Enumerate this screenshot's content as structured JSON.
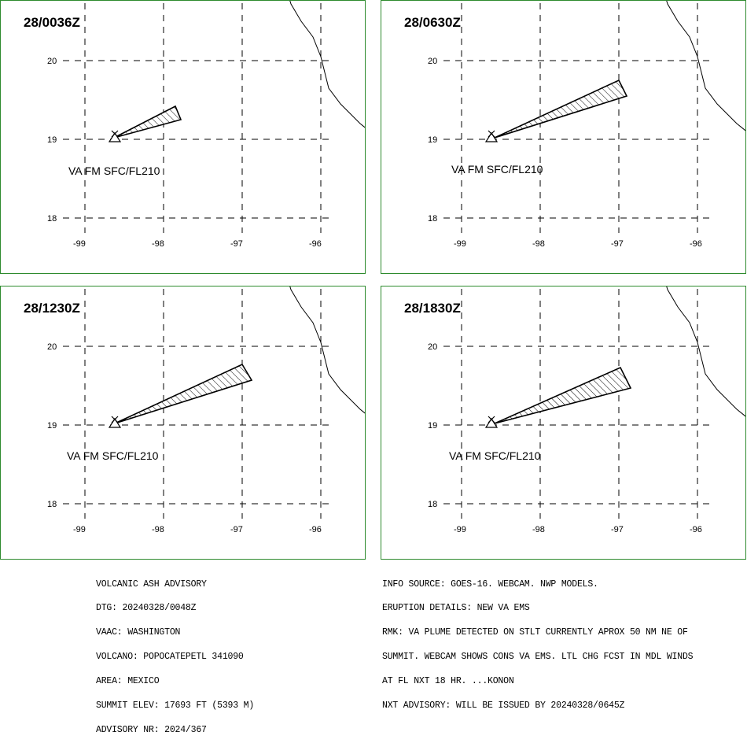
{
  "panels": [
    {
      "time": "28/0036Z",
      "va_label": "VA FM SFC/FL210",
      "plume": [
        [
          -98.63,
          19.02
        ],
        [
          -97.85,
          19.42
        ],
        [
          -97.78,
          19.25
        ]
      ]
    },
    {
      "time": "28/0630Z",
      "va_label": "VA FM SFC/FL210",
      "plume": [
        [
          -98.58,
          19.02
        ],
        [
          -97.0,
          19.75
        ],
        [
          -96.9,
          19.55
        ]
      ]
    },
    {
      "time": "28/1230Z",
      "va_label": "VA FM SFC/FL210",
      "plume": [
        [
          -98.62,
          19.02
        ],
        [
          -97.0,
          19.77
        ],
        [
          -96.88,
          19.57
        ]
      ]
    },
    {
      "time": "28/1830Z",
      "va_label": "VA FM SFC/FL210",
      "plume": [
        [
          -98.58,
          19.02
        ],
        [
          -96.98,
          19.73
        ],
        [
          -96.85,
          19.47
        ]
      ]
    }
  ],
  "axes": {
    "lat_ticks": [
      20,
      19,
      18
    ],
    "lat_labels": [
      "20",
      "19",
      "18"
    ],
    "lon_ticks": [
      -99,
      -98,
      -97,
      -96
    ],
    "lon_labels": [
      "-99",
      "-98",
      "-97",
      "-96"
    ]
  },
  "volcano": {
    "lon": -98.62,
    "lat": 19.02
  },
  "coastline": [
    [
      -96.8,
      21.75
    ],
    [
      -96.65,
      21.5
    ],
    [
      -96.55,
      21.25
    ],
    [
      -96.45,
      20.95
    ],
    [
      -96.38,
      20.72
    ],
    [
      -96.25,
      20.5
    ],
    [
      -96.1,
      20.3
    ],
    [
      -96.0,
      20.05
    ],
    [
      -95.95,
      19.85
    ],
    [
      -95.9,
      19.65
    ],
    [
      -95.75,
      19.45
    ],
    [
      -95.5,
      19.2
    ],
    [
      -95.35,
      19.08
    ],
    [
      -95.1,
      18.95
    ]
  ],
  "advisory_left": [
    "VOLCANIC ASH ADVISORY",
    "DTG: 20240328/0048Z",
    "VAAC: WASHINGTON",
    "VOLCANO: POPOCATEPETL 341090",
    "AREA: MEXICO",
    "SUMMIT ELEV: 17693 FT (5393 M)",
    "ADVISORY NR: 2024/367"
  ],
  "advisory_right": [
    "INFO SOURCE: GOES-16. WEBCAM. NWP MODELS.",
    "ERUPTION DETAILS: NEW VA EMS",
    "RMK: VA PLUME DETECTED ON STLT CURRENTLY APROX 50 NM NE OF",
    "SUMMIT. WEBCAM SHOWS CONS VA EMS. LTL CHG FCST IN MDL WINDS",
    "AT FL NXT 18 HR. ...KONON",
    "NXT ADVISORY: WILL BE ISSUED BY 20240328/0645Z"
  ]
}
